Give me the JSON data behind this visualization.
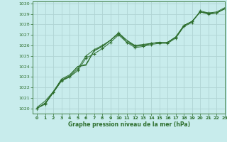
{
  "title": "Graphe pression niveau de la mer (hPa)",
  "bg_color": "#c8ecec",
  "grid_color": "#b0d4d4",
  "line_color": "#2d6e2d",
  "xlim": [
    -0.5,
    23
  ],
  "ylim": [
    1019.5,
    1030.2
  ],
  "xticks": [
    0,
    1,
    2,
    3,
    4,
    5,
    6,
    7,
    8,
    9,
    10,
    11,
    12,
    13,
    14,
    15,
    16,
    17,
    18,
    19,
    20,
    21,
    22,
    23
  ],
  "yticks": [
    1020,
    1021,
    1022,
    1023,
    1024,
    1025,
    1026,
    1027,
    1028,
    1029,
    1030
  ],
  "series": [
    [
      1020.0,
      1020.5,
      1021.5,
      1022.7,
      1023.0,
      1023.6,
      1024.8,
      1025.2,
      1025.7,
      1026.3,
      1027.0,
      1026.3,
      1025.8,
      1025.9,
      1026.1,
      1026.2,
      1026.2,
      1026.7,
      1027.8,
      1028.2,
      1029.3,
      1029.1,
      1029.1,
      1029.5
    ],
    [
      1020.1,
      1020.7,
      1021.6,
      1022.8,
      1023.2,
      1024.0,
      1024.2,
      1025.5,
      1025.9,
      1026.5,
      1027.2,
      1026.5,
      1026.0,
      1026.0,
      1026.2,
      1026.3,
      1026.3,
      1026.8,
      1027.9,
      1028.3,
      1029.2,
      1029.1,
      1029.2,
      1029.6
    ],
    [
      1020.0,
      1020.5,
      1021.6,
      1022.7,
      1023.1,
      1024.0,
      1024.1,
      1025.5,
      1025.9,
      1026.5,
      1027.1,
      1026.5,
      1025.9,
      1026.0,
      1026.2,
      1026.3,
      1026.3,
      1026.8,
      1027.9,
      1028.3,
      1029.2,
      1029.0,
      1029.1,
      1029.5
    ],
    [
      1020.0,
      1020.4,
      1021.5,
      1022.6,
      1023.0,
      1023.8,
      1025.0,
      1025.6,
      1026.0,
      1026.5,
      1027.2,
      1026.3,
      1026.0,
      1026.1,
      1026.2,
      1026.3,
      1026.3,
      1026.8,
      1027.9,
      1028.3,
      1029.2,
      1029.0,
      1029.1,
      1029.5
    ]
  ],
  "marker_series": [
    0,
    3
  ],
  "plain_series": [
    1,
    2
  ]
}
